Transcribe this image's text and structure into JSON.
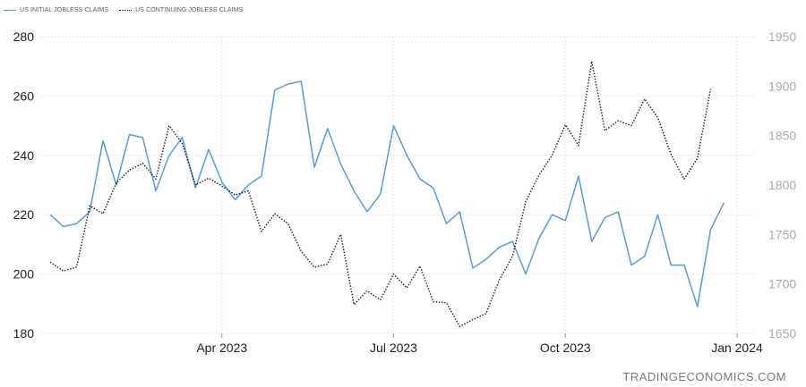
{
  "legend": {
    "initial_label": "US INITIAL JOBLESS CLAIMS",
    "continuing_label": "US CONTINUING JOBLESS CLAIMS"
  },
  "watermark": "TRADINGECONOMICS.COM",
  "colors": {
    "initial": "#5a9bd4",
    "continuing": "#111111",
    "grid": "#e6e6e6",
    "left_axis_text": "#222222",
    "right_axis_text": "#aaaaaa"
  },
  "chart_data": {
    "type": "line",
    "x_ticks": [
      "Apr 2023",
      "Jul 2023",
      "Oct 2023",
      "Jan 2024"
    ],
    "x_tick_weeks": [
      13,
      26,
      39,
      52
    ],
    "y_left": {
      "ticks": [
        180,
        200,
        220,
        240,
        260,
        280
      ],
      "range": [
        180,
        280
      ]
    },
    "y_right": {
      "ticks": [
        1650,
        1700,
        1750,
        1800,
        1850,
        1900,
        1950
      ],
      "range": [
        1650,
        1950
      ]
    },
    "grid": "horizontal",
    "legend_position": "top-left",
    "series": [
      {
        "name": "US INITIAL JOBLESS CLAIMS",
        "axis": "left",
        "style": "solid",
        "values": [
          220,
          216,
          217,
          221,
          245,
          230,
          247,
          246,
          228,
          240,
          246,
          229,
          242,
          231,
          225,
          230,
          233,
          262,
          264,
          265,
          236,
          249,
          237,
          228,
          221,
          227,
          250,
          240,
          232,
          229,
          217,
          221,
          202,
          205,
          209,
          211,
          200,
          212,
          220,
          218,
          233,
          211,
          219,
          221,
          203,
          206,
          220,
          203,
          203,
          189,
          215,
          224
        ]
      },
      {
        "name": "US CONTINUING JOBLESS CLAIMS",
        "axis": "right",
        "style": "dotted",
        "values": [
          1722,
          1713,
          1717,
          1779,
          1771,
          1802,
          1815,
          1822,
          1806,
          1860,
          1842,
          1800,
          1807,
          1799,
          1790,
          1794,
          1753,
          1771,
          1761,
          1733,
          1717,
          1720,
          1750,
          1679,
          1693,
          1684,
          1710,
          1696,
          1718,
          1682,
          1681,
          1657,
          1664,
          1670,
          1704,
          1728,
          1783,
          1810,
          1830,
          1861,
          1840,
          1925,
          1855,
          1865,
          1860,
          1887,
          1868,
          1831,
          1806,
          1827,
          1897
        ]
      }
    ]
  }
}
